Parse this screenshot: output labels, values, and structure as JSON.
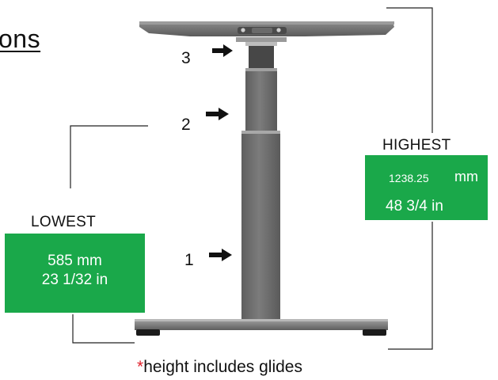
{
  "heading_fragment": "ons",
  "markers": [
    "3",
    "2",
    "1"
  ],
  "lowest": {
    "title": "LOWEST",
    "mm_value": "585",
    "mm_unit": "mm",
    "in_value": "23 1/32 in"
  },
  "highest": {
    "title": "HIGHEST",
    "mm_value": "1238.25",
    "mm_unit": "mm",
    "in_value": "48 3/4 in"
  },
  "footnote": {
    "asterisk": "*",
    "text": "height includes glides"
  },
  "colors": {
    "box_fill": "#1aa84a",
    "asterisk": "#e0202a",
    "leg": "#707070"
  }
}
